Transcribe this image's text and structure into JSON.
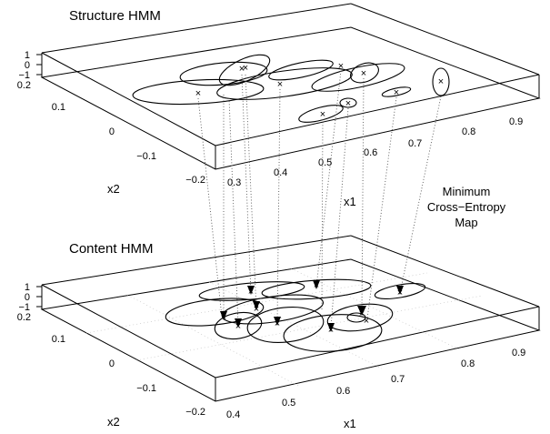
{
  "figure": {
    "top_panel": {
      "title": "Structure HMM",
      "z_ticks": [
        "1",
        "0",
        "−1"
      ],
      "x2_ticks": [
        "0.2",
        "0.1",
        "0",
        "−0.1",
        "−0.2"
      ],
      "x1_ticks": [
        "0.3",
        "0.4",
        "0.5",
        "0.6",
        "0.7",
        "0.8",
        "0.9"
      ],
      "x1_label": "x1",
      "x2_label": "x2"
    },
    "bottom_panel": {
      "title": "Content HMM",
      "z_ticks": [
        "1",
        "0",
        "−1"
      ],
      "x2_ticks": [
        "0.2",
        "0.1",
        "0",
        "−0.1",
        "−0.2"
      ],
      "x1_ticks": [
        "0.4",
        "0.5",
        "0.6",
        "0.7",
        "0.8",
        "0.9"
      ],
      "x1_label": "x1",
      "x2_label": "x2"
    },
    "map_label": [
      "Minimum",
      "Cross−Entropy",
      "Map"
    ]
  }
}
